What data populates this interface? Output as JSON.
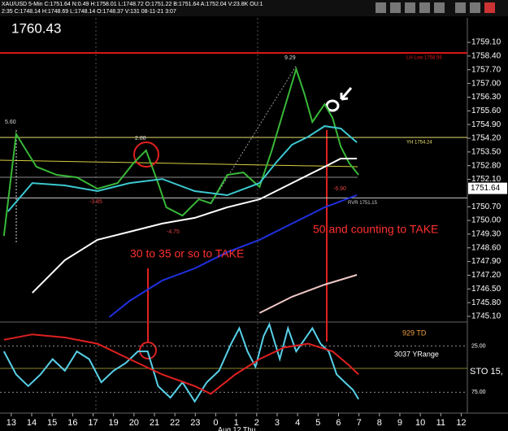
{
  "header": {
    "line1": "XAU/USD 5-Min C:1751.64 N:0.49 H:1758.01 L:1748.72 O:1751.22 B:1751.64 A:1752.04 V:23.8K OU:1",
    "line2": "2:35 C:1748.14 H:1748.69 L:1748.14 O:1748.37 V:131 08-11-21 3:07"
  },
  "chart_data": [
    {
      "type": "line",
      "title": "1760.43",
      "last_price": 1751.64,
      "xlim": [
        -0.55,
        22.3
      ],
      "xticks": [
        {
          "value": 0,
          "label": "13"
        },
        {
          "value": 1,
          "label": "14"
        },
        {
          "value": 2,
          "label": "15"
        },
        {
          "value": 3,
          "label": "16"
        },
        {
          "value": 4,
          "label": "17"
        },
        {
          "value": 5,
          "label": "19"
        },
        {
          "value": 6,
          "label": "20"
        },
        {
          "value": 7,
          "label": "21"
        },
        {
          "value": 8,
          "label": "22"
        },
        {
          "value": 9,
          "label": "23"
        },
        {
          "value": 10,
          "label": "0"
        },
        {
          "value": 11,
          "label": "1"
        },
        {
          "value": 12,
          "label": "2"
        },
        {
          "value": 13,
          "label": "3"
        },
        {
          "value": 14,
          "label": "4"
        },
        {
          "value": 15,
          "label": "5"
        },
        {
          "value": 16,
          "label": "6"
        },
        {
          "value": 17,
          "label": "7"
        },
        {
          "value": 18,
          "label": "8"
        },
        {
          "value": 19,
          "label": "9"
        },
        {
          "value": 20,
          "label": "10"
        },
        {
          "value": 21,
          "label": "11"
        },
        {
          "value": 22,
          "label": "12"
        }
      ],
      "x_note": "Aug 12 Thu",
      "ylim": [
        1744.85,
        1760.35
      ],
      "yticks": [
        {
          "value": 1745.1,
          "label": "1745.10"
        },
        {
          "value": 1745.8,
          "label": "1745.80"
        },
        {
          "value": 1746.5,
          "label": "1746.50"
        },
        {
          "value": 1747.2,
          "label": "1747.20"
        },
        {
          "value": 1747.9,
          "label": "1747.90"
        },
        {
          "value": 1748.6,
          "label": "1748.60"
        },
        {
          "value": 1749.3,
          "label": "1749.30"
        },
        {
          "value": 1750,
          "label": "1750.00"
        },
        {
          "value": 1750.7,
          "label": "1750.70"
        },
        {
          "value": 1752.1,
          "label": "1752.10"
        },
        {
          "value": 1752.8,
          "label": "1752.80"
        },
        {
          "value": 1753.5,
          "label": "1753.50"
        },
        {
          "value": 1754.2,
          "label": "1754.20"
        },
        {
          "value": 1754.9,
          "label": "1754.90"
        },
        {
          "value": 1755.6,
          "label": "1755.60"
        },
        {
          "value": 1756.3,
          "label": "1756.30"
        },
        {
          "value": 1757,
          "label": "1757.00"
        },
        {
          "value": 1757.7,
          "label": "1757.70"
        },
        {
          "value": 1758.4,
          "label": "1758.40"
        },
        {
          "value": 1759.1,
          "label": "1759.10"
        }
      ],
      "levels": [
        {
          "value": 1758.56,
          "label": "LH Low 1758.56",
          "color": "#e01818"
        },
        {
          "value": 1754.24,
          "label": "YH 1754.24",
          "color": "#e8e070"
        },
        {
          "value": 1751.15,
          "label": "RVR 1751.15",
          "color": "#c8c8c8"
        }
      ],
      "series": [
        {
          "color": "#38b838",
          "x": [
            -0.36,
            0.24,
            1.23,
            2.22,
            3.21,
            4.21,
            5.2,
            5.99,
            6.59,
            7.18,
            7.58,
            8.37,
            9.17,
            9.76,
            10.56,
            11.35,
            12.14,
            12.74,
            13.33,
            13.93,
            14.33,
            14.72,
            15.32,
            15.71,
            16.11,
            16.51,
            16.98
          ],
          "values": [
            1749.21,
            1754.41,
            1752.74,
            1752.33,
            1752.2,
            1751.62,
            1751.91,
            1752.95,
            1753.58,
            1751.91,
            1750.67,
            1750.25,
            1751.08,
            1750.87,
            1752.33,
            1752.45,
            1751.71,
            1753.58,
            1755.65,
            1757.73,
            1756.48,
            1755.03,
            1755.94,
            1755.24,
            1753.78,
            1752.95,
            1752.33
          ]
        },
        {
          "color": "#3cc8d0",
          "x": [
            -0.16,
            1.03,
            2.62,
            4.21,
            5.79,
            7.38,
            8.97,
            10.56,
            12.14,
            12.94,
            13.73,
            14.52,
            15.32,
            16.11,
            16.9
          ],
          "values": [
            1750.46,
            1751.91,
            1751.79,
            1751.5,
            1751.91,
            1752.12,
            1751.5,
            1751.29,
            1751.91,
            1752.95,
            1753.87,
            1754.28,
            1754.82,
            1754.7,
            1753.99
          ]
        },
        {
          "color": "#ffffff",
          "x": [
            1.03,
            2.62,
            4.21,
            5.79,
            7.38,
            8.97,
            10.56,
            12.14,
            13.73,
            15.32,
            16.11,
            16.9
          ],
          "values": [
            1746.3,
            1747.97,
            1749.01,
            1749.42,
            1749.84,
            1750.13,
            1750.67,
            1751.08,
            1751.91,
            1752.74,
            1753.16,
            1753.16
          ]
        },
        {
          "color": "#2030e0",
          "x": [
            4.8,
            5.79,
            7.38,
            8.97,
            10.56,
            12.14,
            13.73,
            15.32,
            16.9
          ],
          "values": [
            1745.06,
            1745.89,
            1746.93,
            1747.55,
            1748.38,
            1749.01,
            1749.84,
            1750.67,
            1751.29
          ]
        },
        {
          "color": "#f0c8c8",
          "x": [
            12.14,
            13.73,
            15.32,
            16.9
          ],
          "values": [
            1745.27,
            1746.1,
            1746.72,
            1747.22
          ]
        }
      ],
      "annotations": [
        "5.60",
        "2.88",
        "9.29",
        "-3.85",
        "-4.75",
        "-6.90",
        "30 to 35 or so to TAKE",
        "50 and counting to TAKE"
      ]
    },
    {
      "type": "line",
      "xlim": [
        -0.55,
        22.3
      ],
      "ylim": [
        97.5,
        0
      ],
      "yticks": [
        {
          "value": 25,
          "label": "25.00"
        },
        {
          "value": 75,
          "label": "75.00"
        }
      ],
      "labels": [
        "929 TD",
        "3037 YRange",
        "STO 15,"
      ],
      "series": [
        {
          "color": "#58d0e8",
          "x": [
            -0.36,
            0.24,
            0.83,
            1.43,
            2.02,
            2.62,
            3.21,
            3.81,
            4.4,
            5,
            5.6,
            6.19,
            6.67,
            7.18,
            7.78,
            8.37,
            8.97,
            9.56,
            10.16,
            10.75,
            11.15,
            11.55,
            11.94,
            12.34,
            12.62,
            13.13,
            13.53,
            13.93,
            14.33,
            14.72,
            15.12,
            15.52,
            15.91,
            16.31,
            16.71,
            16.98
          ],
          "values": [
            30.8,
            55.8,
            68.3,
            55.8,
            39.2,
            51.7,
            30.8,
            39.2,
            64.2,
            51.7,
            43.3,
            30.8,
            30.8,
            68.3,
            80.8,
            64.2,
            85,
            64.2,
            51.7,
            22.5,
            5.8,
            30.8,
            47.5,
            14.2,
            1.7,
            39.2,
            5.8,
            30.8,
            18.3,
            5.8,
            22.5,
            30.8,
            55.8,
            64.2,
            72.5,
            82.5
          ]
        },
        {
          "color": "#e02020",
          "x": [
            -0.36,
            1.03,
            2.62,
            4.21,
            5.79,
            7.38,
            8.97,
            9.76,
            10.95,
            12.14,
            13.33,
            14.52,
            15.71,
            16.51,
            16.98
          ],
          "values": [
            18.3,
            12.5,
            15.8,
            22.5,
            39.2,
            55.8,
            68.3,
            76.7,
            55.8,
            39.2,
            26.7,
            22.5,
            30.8,
            45.8,
            55.8
          ]
        }
      ]
    }
  ]
}
